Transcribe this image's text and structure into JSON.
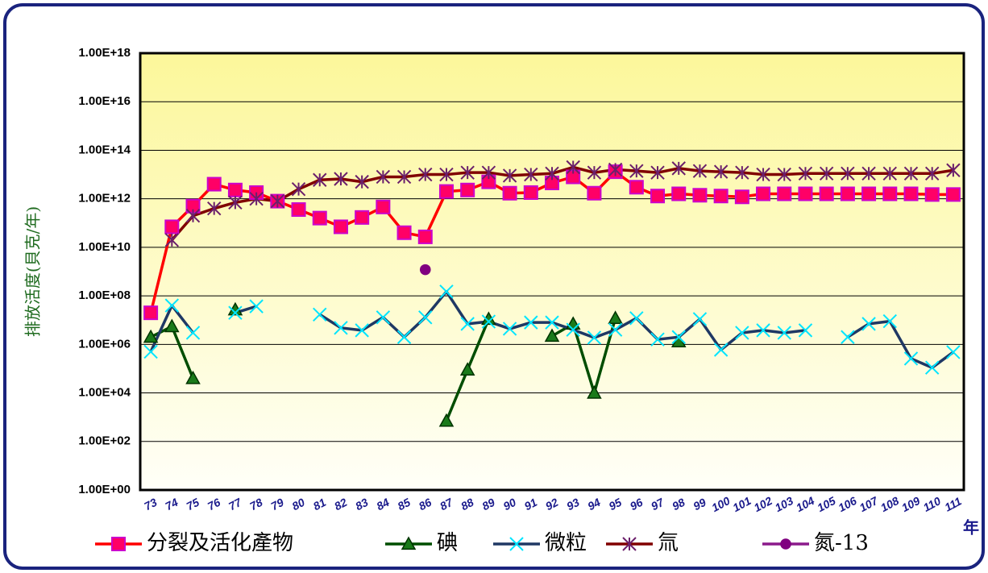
{
  "chart_data": {
    "type": "line",
    "y_label": "排放活度(貝克/年)",
    "x_label": "年",
    "log_scale": true,
    "grid": true,
    "categories": [
      "73",
      "74",
      "75",
      "76",
      "77",
      "78",
      "79",
      "80",
      "81",
      "82",
      "83",
      "84",
      "85",
      "86",
      "87",
      "88",
      "89",
      "90",
      "91",
      "92",
      "93",
      "94",
      "95",
      "96",
      "97",
      "98",
      "99",
      "100",
      "101",
      "102",
      "103",
      "104",
      "105",
      "106",
      "107",
      "108",
      "109",
      "110",
      "111"
    ],
    "ylim": [
      1,
      1e+18
    ],
    "yticks": [
      {
        "value": 1,
        "label": "1.00E+00"
      },
      {
        "value": 100,
        "label": "1.00E+02"
      },
      {
        "value": 10000,
        "label": "1.00E+04"
      },
      {
        "value": 1000000,
        "label": "1.00E+06"
      },
      {
        "value": 100000000,
        "label": "1.00E+08"
      },
      {
        "value": 10000000000,
        "label": "1.00E+10"
      },
      {
        "value": 1000000000000,
        "label": "1.00E+12"
      },
      {
        "value": 100000000000000,
        "label": "1.00E+14"
      },
      {
        "value": 10000000000000000,
        "label": "1.00E+16"
      },
      {
        "value": 1000000000000000000,
        "label": "1.00E+18"
      }
    ],
    "series": [
      {
        "name": "分裂及活化產物",
        "color": "#ff0000",
        "marker_color": "#ff0066",
        "marker": "square",
        "values": [
          20000000.0,
          70000000000.0,
          500000000000.0,
          4000000000000.0,
          2300000000000.0,
          1800000000000.0,
          800000000000.0,
          360000000000.0,
          160000000000.0,
          70000000000.0,
          170000000000.0,
          460000000000.0,
          40000000000.0,
          27000000000.0,
          2000000000000.0,
          2300000000000.0,
          5000000000000.0,
          1700000000000.0,
          1800000000000.0,
          4500000000000.0,
          8000000000000.0,
          1700000000000.0,
          13000000000000.0,
          3000000000000.0,
          1300000000000.0,
          1600000000000.0,
          1400000000000.0,
          1300000000000.0,
          1200000000000.0,
          1600000000000.0,
          1600000000000.0,
          1600000000000.0,
          1600000000000.0,
          1600000000000.0,
          1600000000000.0,
          1600000000000.0,
          1600000000000.0,
          1500000000000.0,
          1500000000000.0
        ]
      },
      {
        "name": "碘",
        "color": "#004d00",
        "marker_color": "#1a7a1a",
        "marker": "triangle",
        "values": [
          2000000.0,
          5500000.0,
          40000.0,
          null,
          27000000.0,
          null,
          null,
          null,
          null,
          null,
          null,
          null,
          null,
          null,
          700,
          90000.0,
          11000000.0,
          null,
          null,
          2200000.0,
          7000000.0,
          10000.0,
          12000000.0,
          null,
          null,
          1300000.0,
          null,
          null,
          null,
          null,
          null,
          null,
          null,
          null,
          null,
          null,
          null,
          null,
          null
        ]
      },
      {
        "name": "微粒",
        "color": "#1f3864",
        "marker_color": "#00e5ff",
        "marker": "x",
        "values": [
          500000.0,
          40000000.0,
          3000000.0,
          null,
          20000000.0,
          37000000.0,
          null,
          null,
          17000000.0,
          4800000.0,
          3800000.0,
          13000000.0,
          2000000.0,
          13000000.0,
          150000000.0,
          7000000.0,
          8700000.0,
          4400000.0,
          8000000.0,
          8000000.0,
          4000000.0,
          1900000.0,
          4000000.0,
          12000000.0,
          1600000.0,
          2000000.0,
          11000000.0,
          600000.0,
          3000000.0,
          3800000.0,
          3000000.0,
          3800000.0,
          null,
          2000000.0,
          7000000.0,
          9000000.0,
          260000.0,
          110000.0,
          480000.0
        ]
      },
      {
        "name": "氚",
        "color": "#800000",
        "marker_color": "#6b1f6b",
        "marker": "star",
        "values": [
          null,
          20000000000.0,
          200000000000.0,
          400000000000.0,
          700000000000.0,
          1000000000000.0,
          800000000000.0,
          2500000000000.0,
          6000000000000.0,
          6600000000000.0,
          5000000000000.0,
          8000000000000.0,
          8000000000000.0,
          10000000000000.0,
          10000000000000.0,
          12000000000000.0,
          12000000000000.0,
          9000000000000.0,
          10000000000000.0,
          11000000000000.0,
          20000000000000.0,
          12000000000000.0,
          16000000000000.0,
          14000000000000.0,
          12000000000000.0,
          18000000000000.0,
          14000000000000.0,
          13000000000000.0,
          12000000000000.0,
          10000000000000.0,
          10000000000000.0,
          11000000000000.0,
          11000000000000.0,
          11000000000000.0,
          11000000000000.0,
          11000000000000.0,
          11000000000000.0,
          11000000000000.0,
          15000000000000.0
        ]
      },
      {
        "name": "氮-13",
        "color": "#8b1a8b",
        "marker_color": "#800080",
        "marker": "circle",
        "values": [
          null,
          null,
          null,
          null,
          null,
          null,
          null,
          null,
          null,
          null,
          null,
          null,
          null,
          1200000000.0,
          null,
          null,
          null,
          null,
          null,
          null,
          null,
          null,
          null,
          null,
          null,
          null,
          null,
          null,
          null,
          null,
          null,
          null,
          null,
          null,
          null,
          null,
          null,
          null,
          null
        ]
      }
    ]
  }
}
